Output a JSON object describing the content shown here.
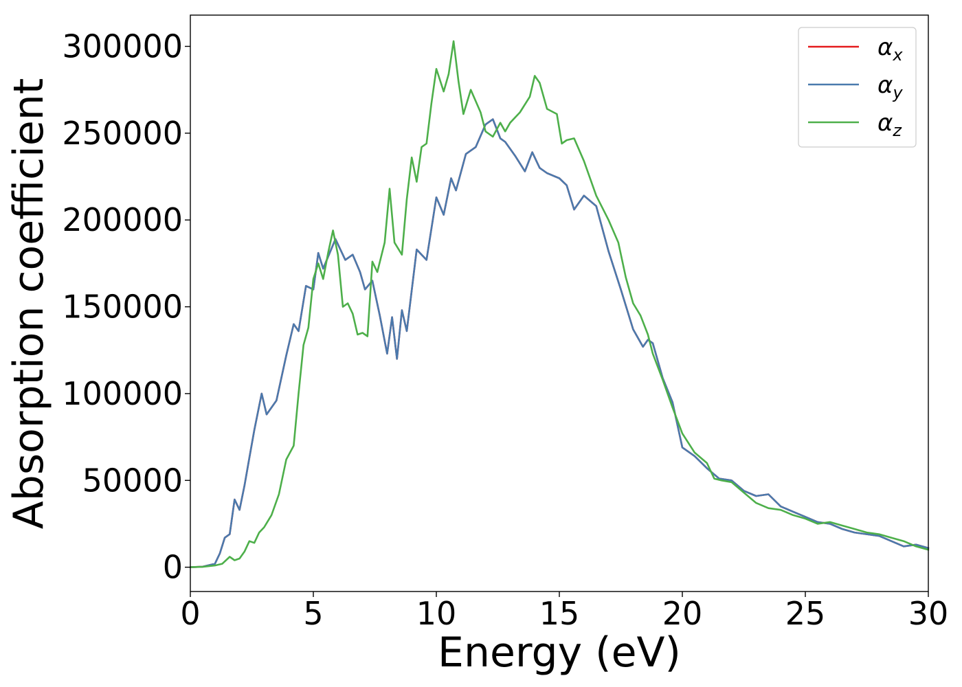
{
  "chart_data": {
    "type": "line",
    "title": "",
    "xlabel": "Energy (eV)",
    "ylabel": "Absorption coefficient",
    "xlim": [
      0,
      30
    ],
    "ylim": [
      -14000,
      318000
    ],
    "xticks": [
      0,
      5,
      10,
      15,
      20,
      25,
      30
    ],
    "yticks": [
      0,
      50000,
      100000,
      150000,
      200000,
      250000,
      300000
    ],
    "xtick_labels": [
      "0",
      "5",
      "10",
      "15",
      "20",
      "25",
      "30"
    ],
    "ytick_labels": [
      "0",
      "50000",
      "100000",
      "150000",
      "200000",
      "250000",
      "300000"
    ],
    "grid": false,
    "legend_position": "top-right",
    "series": [
      {
        "name": "αx",
        "symbol": "α",
        "subscript": "x",
        "color": "#e41a1c",
        "x": [
          0,
          0.5,
          1.0,
          1.2,
          1.4,
          1.6,
          1.8,
          2.0,
          2.2,
          2.4,
          2.6,
          2.9,
          3.1,
          3.5,
          3.9,
          4.2,
          4.4,
          4.7,
          5.0,
          5.2,
          5.4,
          5.9,
          6.3,
          6.6,
          6.9,
          7.1,
          7.4,
          7.7,
          8.0,
          8.2,
          8.4,
          8.6,
          8.8,
          9.2,
          9.6,
          10.0,
          10.3,
          10.6,
          10.8,
          11.2,
          11.6,
          12.0,
          12.3,
          12.6,
          12.8,
          13.2,
          13.6,
          13.9,
          14.2,
          14.5,
          15.0,
          15.3,
          15.6,
          16.0,
          16.5,
          17.0,
          17.5,
          18.0,
          18.4,
          18.6,
          18.8,
          19.2,
          19.6,
          20.0,
          20.5,
          21.0,
          21.5,
          22.0,
          22.5,
          23.0,
          23.5,
          24.0,
          24.5,
          25.0,
          25.5,
          26.0,
          26.5,
          27.0,
          27.5,
          28.0,
          28.5,
          29.0,
          29.5,
          30.0
        ],
        "y": [
          0,
          300,
          2000,
          8000,
          17000,
          19000,
          39000,
          33000,
          47000,
          63000,
          79000,
          100000,
          88000,
          96000,
          122000,
          140000,
          136000,
          162000,
          160000,
          181000,
          172000,
          189000,
          177000,
          180000,
          170000,
          160000,
          165000,
          145000,
          123000,
          144000,
          120000,
          148000,
          136000,
          183000,
          177000,
          213000,
          203000,
          224000,
          217000,
          238000,
          242000,
          255000,
          258000,
          247000,
          245000,
          237000,
          228000,
          239000,
          230000,
          227000,
          224000,
          220000,
          206000,
          214000,
          208000,
          182000,
          160000,
          137000,
          127000,
          131000,
          129000,
          109000,
          95000,
          69000,
          64000,
          57000,
          51000,
          50000,
          44000,
          41000,
          42000,
          35000,
          32000,
          29000,
          26000,
          25000,
          22000,
          20000,
          19000,
          18000,
          15000,
          12000,
          13000,
          11000
        ]
      },
      {
        "name": "αy",
        "symbol": "α",
        "subscript": "y",
        "color": "#4a7aad",
        "x": [
          0,
          0.5,
          1.0,
          1.2,
          1.4,
          1.6,
          1.8,
          2.0,
          2.2,
          2.4,
          2.6,
          2.9,
          3.1,
          3.5,
          3.9,
          4.2,
          4.4,
          4.7,
          5.0,
          5.2,
          5.4,
          5.9,
          6.3,
          6.6,
          6.9,
          7.1,
          7.4,
          7.7,
          8.0,
          8.2,
          8.4,
          8.6,
          8.8,
          9.2,
          9.6,
          10.0,
          10.3,
          10.6,
          10.8,
          11.2,
          11.6,
          12.0,
          12.3,
          12.6,
          12.8,
          13.2,
          13.6,
          13.9,
          14.2,
          14.5,
          15.0,
          15.3,
          15.6,
          16.0,
          16.5,
          17.0,
          17.5,
          18.0,
          18.4,
          18.6,
          18.8,
          19.2,
          19.6,
          20.0,
          20.5,
          21.0,
          21.5,
          22.0,
          22.5,
          23.0,
          23.5,
          24.0,
          24.5,
          25.0,
          25.5,
          26.0,
          26.5,
          27.0,
          27.5,
          28.0,
          28.5,
          29.0,
          29.5,
          30.0
        ],
        "y": [
          0,
          300,
          2000,
          8000,
          17000,
          19000,
          39000,
          33000,
          47000,
          63000,
          79000,
          100000,
          88000,
          96000,
          122000,
          140000,
          136000,
          162000,
          160000,
          181000,
          172000,
          189000,
          177000,
          180000,
          170000,
          160000,
          165000,
          145000,
          123000,
          144000,
          120000,
          148000,
          136000,
          183000,
          177000,
          213000,
          203000,
          224000,
          217000,
          238000,
          242000,
          255000,
          258000,
          247000,
          245000,
          237000,
          228000,
          239000,
          230000,
          227000,
          224000,
          220000,
          206000,
          214000,
          208000,
          182000,
          160000,
          137000,
          127000,
          131000,
          129000,
          109000,
          95000,
          69000,
          64000,
          57000,
          51000,
          50000,
          44000,
          41000,
          42000,
          35000,
          32000,
          29000,
          26000,
          25000,
          22000,
          20000,
          19000,
          18000,
          15000,
          12000,
          13000,
          11000
        ]
      },
      {
        "name": "αz",
        "symbol": "α",
        "subscript": "z",
        "color": "#4daf4a",
        "x": [
          0,
          0.5,
          1.0,
          1.3,
          1.6,
          1.8,
          2.0,
          2.2,
          2.4,
          2.6,
          2.8,
          3.0,
          3.3,
          3.6,
          3.9,
          4.2,
          4.4,
          4.6,
          4.8,
          5.0,
          5.2,
          5.4,
          5.6,
          5.8,
          6.0,
          6.2,
          6.4,
          6.6,
          6.8,
          7.0,
          7.2,
          7.4,
          7.6,
          7.9,
          8.1,
          8.3,
          8.6,
          8.8,
          9.0,
          9.2,
          9.4,
          9.6,
          9.8,
          10.0,
          10.3,
          10.5,
          10.7,
          10.9,
          11.1,
          11.4,
          11.8,
          12.0,
          12.3,
          12.6,
          12.8,
          13.0,
          13.4,
          13.8,
          14.0,
          14.2,
          14.5,
          14.9,
          15.1,
          15.3,
          15.6,
          16.0,
          16.5,
          17.0,
          17.4,
          17.7,
          18.0,
          18.3,
          18.6,
          18.8,
          19.2,
          19.6,
          20.0,
          20.5,
          21.0,
          21.3,
          21.6,
          22.0,
          22.5,
          23.0,
          23.5,
          24.0,
          24.5,
          25.0,
          25.5,
          26.0,
          26.5,
          27.0,
          27.5,
          28.0,
          28.5,
          29.0,
          29.5,
          30.0
        ],
        "y": [
          0,
          200,
          1000,
          2000,
          6000,
          4000,
          5000,
          9000,
          15000,
          14000,
          20000,
          23000,
          30000,
          42000,
          62000,
          70000,
          100000,
          128000,
          138000,
          166000,
          175000,
          166000,
          181000,
          194000,
          180000,
          150000,
          152000,
          146000,
          134000,
          135000,
          133000,
          176000,
          170000,
          187000,
          218000,
          187000,
          180000,
          212000,
          236000,
          222000,
          242000,
          244000,
          267000,
          287000,
          274000,
          284000,
          303000,
          280000,
          261000,
          275000,
          262000,
          251000,
          248000,
          256000,
          251000,
          256000,
          262000,
          271000,
          283000,
          279000,
          264000,
          261000,
          244000,
          246000,
          247000,
          234000,
          214000,
          200000,
          187000,
          167000,
          152000,
          145000,
          134000,
          123000,
          108000,
          92000,
          77000,
          66000,
          60000,
          51000,
          50000,
          49000,
          43000,
          37000,
          34000,
          33000,
          30000,
          28000,
          25000,
          26000,
          24000,
          22000,
          20000,
          19000,
          17000,
          15000,
          12000,
          10000
        ]
      }
    ]
  }
}
